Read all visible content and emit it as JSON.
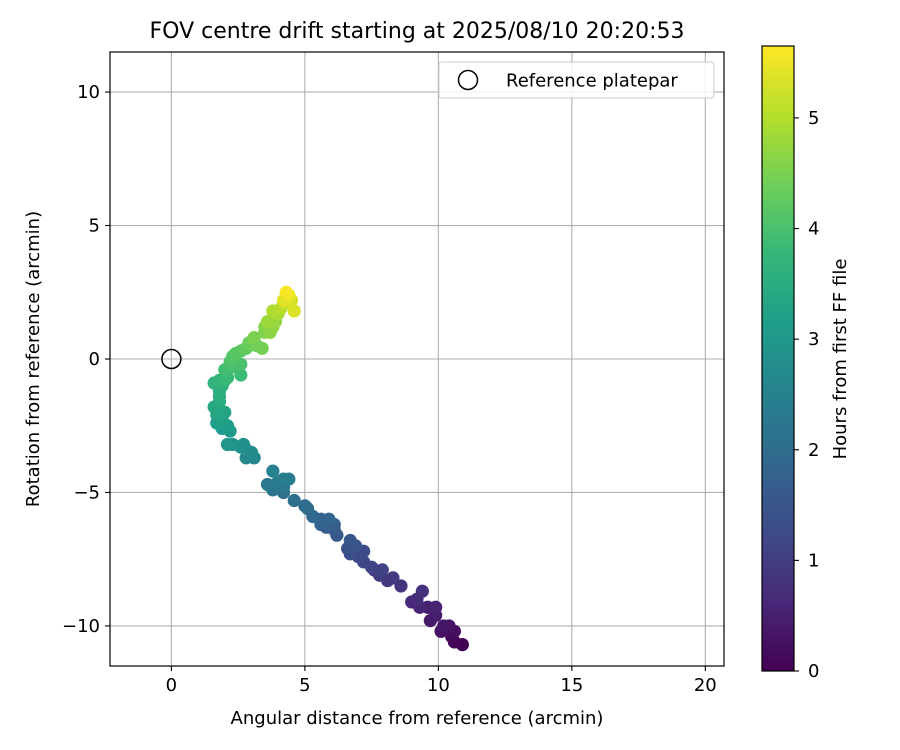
{
  "chart_data": {
    "type": "scatter",
    "title": "FOV centre drift starting at 2025/08/10 20:20:53",
    "xlabel": "Angular distance from reference (arcmin)",
    "ylabel": "Rotation from reference (arcmin)",
    "xlim": [
      -2.3,
      20.7
    ],
    "ylim": [
      -11.5,
      11.5
    ],
    "x_ticks": [
      0,
      5,
      10,
      15,
      20
    ],
    "x_tick_labels": [
      "0",
      "5",
      "10",
      "15",
      "20"
    ],
    "y_ticks": [
      -10,
      -5,
      0,
      5,
      10
    ],
    "y_tick_labels": [
      "−10",
      "−5",
      "0",
      "5",
      "10"
    ],
    "grid": true,
    "legend": {
      "position": "top-right",
      "entries": [
        "Reference platepar"
      ]
    },
    "reference_point": {
      "x": 0,
      "y": 0,
      "marker": "open-circle"
    },
    "colorbar": {
      "label": "Hours from first FF file",
      "range": [
        0,
        5.65
      ],
      "ticks": [
        0,
        1,
        2,
        3,
        4,
        5
      ],
      "tick_labels": [
        "0",
        "1",
        "2",
        "3",
        "4",
        "5"
      ],
      "colormap": "viridis"
    },
    "points_xyc": [
      [
        10.9,
        -10.7,
        0.0
      ],
      [
        10.6,
        -10.6,
        0.05
      ],
      [
        10.5,
        -10.4,
        0.1
      ],
      [
        10.4,
        -10.2,
        0.15
      ],
      [
        10.6,
        -10.2,
        0.2
      ],
      [
        10.1,
        -10.2,
        0.25
      ],
      [
        10.4,
        -10.0,
        0.3
      ],
      [
        10.2,
        -10.0,
        0.35
      ],
      [
        9.7,
        -9.8,
        0.4
      ],
      [
        9.9,
        -9.6,
        0.45
      ],
      [
        9.6,
        -9.3,
        0.5
      ],
      [
        9.9,
        -9.3,
        0.55
      ],
      [
        9.3,
        -9.3,
        0.6
      ],
      [
        9.0,
        -9.1,
        0.65
      ],
      [
        9.2,
        -9.0,
        0.7
      ],
      [
        9.4,
        -8.7,
        0.8
      ],
      [
        8.6,
        -8.5,
        0.85
      ],
      [
        8.1,
        -8.3,
        0.9
      ],
      [
        8.3,
        -8.2,
        0.95
      ],
      [
        7.8,
        -8.1,
        1.0
      ],
      [
        7.6,
        -7.9,
        1.05
      ],
      [
        7.9,
        -7.9,
        1.1
      ],
      [
        7.5,
        -7.8,
        1.15
      ],
      [
        7.2,
        -7.6,
        1.2
      ],
      [
        7.0,
        -7.4,
        1.25
      ],
      [
        7.2,
        -7.2,
        1.3
      ],
      [
        6.7,
        -7.3,
        1.35
      ],
      [
        6.6,
        -7.1,
        1.4
      ],
      [
        6.9,
        -7.0,
        1.45
      ],
      [
        6.7,
        -6.8,
        1.5
      ],
      [
        6.2,
        -6.6,
        1.55
      ],
      [
        6.1,
        -6.4,
        1.6
      ],
      [
        5.8,
        -6.3,
        1.65
      ],
      [
        6.1,
        -6.2,
        1.7
      ],
      [
        5.6,
        -6.2,
        1.75
      ],
      [
        5.6,
        -6.0,
        1.8
      ],
      [
        5.9,
        -6.0,
        1.85
      ],
      [
        5.3,
        -5.9,
        1.9
      ],
      [
        5.1,
        -5.6,
        1.95
      ],
      [
        5.0,
        -5.5,
        2.0
      ],
      [
        4.6,
        -5.3,
        2.05
      ],
      [
        4.2,
        -5.0,
        2.1
      ],
      [
        3.8,
        -4.9,
        2.15
      ],
      [
        3.9,
        -4.7,
        2.2
      ],
      [
        4.2,
        -4.8,
        2.25
      ],
      [
        3.6,
        -4.7,
        2.3
      ],
      [
        4.0,
        -4.6,
        2.35
      ],
      [
        4.4,
        -4.5,
        2.4
      ],
      [
        4.2,
        -4.5,
        2.45
      ],
      [
        3.8,
        -4.2,
        2.5
      ],
      [
        3.1,
        -3.7,
        2.6
      ],
      [
        2.8,
        -3.7,
        2.65
      ],
      [
        3.0,
        -3.5,
        2.7
      ],
      [
        2.8,
        -3.4,
        2.75
      ],
      [
        2.6,
        -3.3,
        2.8
      ],
      [
        2.7,
        -3.2,
        2.85
      ],
      [
        2.3,
        -3.2,
        2.9
      ],
      [
        2.1,
        -3.2,
        2.95
      ],
      [
        2.2,
        -2.7,
        3.0
      ],
      [
        1.9,
        -2.6,
        3.05
      ],
      [
        2.1,
        -2.5,
        3.1
      ],
      [
        1.7,
        -2.4,
        3.15
      ],
      [
        1.9,
        -2.3,
        3.2
      ],
      [
        1.7,
        -2.1,
        3.25
      ],
      [
        2.0,
        -2.0,
        3.3
      ],
      [
        1.8,
        -1.9,
        3.35
      ],
      [
        1.6,
        -1.8,
        3.4
      ],
      [
        1.8,
        -1.6,
        3.45
      ],
      [
        1.8,
        -1.4,
        3.5
      ],
      [
        1.8,
        -1.2,
        3.55
      ],
      [
        1.9,
        -1.0,
        3.6
      ],
      [
        1.6,
        -0.9,
        3.65
      ],
      [
        1.8,
        -0.8,
        3.7
      ],
      [
        2.0,
        -0.8,
        3.75
      ],
      [
        2.1,
        -0.7,
        3.8
      ],
      [
        2.6,
        -0.6,
        3.85
      ],
      [
        2.0,
        -0.4,
        3.9
      ],
      [
        2.3,
        -0.3,
        3.95
      ],
      [
        2.6,
        -0.2,
        4.0
      ],
      [
        2.2,
        -0.1,
        4.05
      ],
      [
        2.3,
        0.1,
        4.1
      ],
      [
        2.4,
        0.2,
        4.15
      ],
      [
        2.6,
        0.3,
        4.2
      ],
      [
        2.8,
        0.4,
        4.25
      ],
      [
        2.9,
        0.5,
        4.3
      ],
      [
        2.9,
        0.6,
        4.35
      ],
      [
        3.2,
        0.5,
        4.4
      ],
      [
        3.4,
        0.4,
        4.45
      ],
      [
        3.1,
        0.8,
        4.5
      ],
      [
        3.5,
        1.0,
        4.55
      ],
      [
        3.5,
        1.2,
        4.6
      ],
      [
        3.7,
        1.0,
        4.65
      ],
      [
        3.8,
        1.2,
        4.7
      ],
      [
        3.9,
        1.4,
        4.75
      ],
      [
        3.6,
        1.4,
        4.8
      ],
      [
        4.0,
        1.7,
        4.9
      ],
      [
        3.8,
        1.8,
        4.95
      ],
      [
        4.1,
        1.9,
        5.05
      ],
      [
        4.3,
        2.1,
        5.2
      ],
      [
        4.5,
        2.2,
        5.3
      ],
      [
        4.6,
        1.8,
        5.35
      ],
      [
        4.2,
        2.2,
        5.4
      ],
      [
        4.4,
        2.4,
        5.5
      ],
      [
        4.3,
        2.5,
        5.6
      ]
    ]
  }
}
